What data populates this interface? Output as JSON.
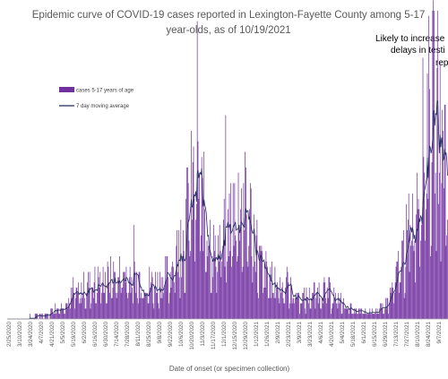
{
  "chart_data": {
    "type": "bar",
    "title_line1": "Epidemic curve of COVID-19 cases reported in Lexington-Fayette County among 5-17",
    "title_line2": "year-olds, as of 10/19/2021",
    "annotation_lines": [
      "Likely to increase",
      "delays in testi",
      "rep"
    ],
    "xlabel": "Date of onset (or specimen collection)",
    "ylabel": "",
    "colors": {
      "bars": "#7030a0",
      "line": "#1f2a5c",
      "axis": "#a6a6a6",
      "text": "#595959"
    },
    "grid": false,
    "legend": {
      "position": "top-left",
      "entries": [
        {
          "label": "cases 5-17 years of age",
          "kind": "bar"
        },
        {
          "label": "7 day moving average",
          "kind": "line"
        }
      ]
    },
    "x_ticks": [
      "2/25/2020",
      "3/10/2020",
      "3/24/2020",
      "4/7/2020",
      "4/21/2020",
      "5/5/2020",
      "5/19/2020",
      "6/2/2020",
      "6/16/2020",
      "6/30/2020",
      "7/14/2020",
      "7/28/2020",
      "8/11/2020",
      "8/25/2020",
      "9/8/2020",
      "9/22/2020",
      "10/6/2020",
      "10/20/2020",
      "11/3/2020",
      "11/17/2020",
      "12/1/2020",
      "12/15/2020",
      "12/29/2020",
      "1/12/2021",
      "1/26/2021",
      "2/9/2021",
      "2/23/2021",
      "3/9/2021",
      "3/23/2021",
      "4/6/2021",
      "4/20/2021",
      "5/4/2021",
      "5/18/2021",
      "6/1/2021",
      "6/15/2021",
      "6/29/2021",
      "7/13/2021",
      "7/27/2021",
      "8/10/2021",
      "8/24/2021",
      "9/7/2021"
    ],
    "ylim": [
      0,
      50
    ],
    "series_profile": {
      "description_points": [
        [
          0,
          0.2
        ],
        [
          28,
          0.3
        ],
        [
          50,
          0.8
        ],
        [
          80,
          3.0
        ],
        [
          100,
          5.5
        ],
        [
          120,
          6.5
        ],
        [
          140,
          7.5
        ],
        [
          160,
          8.0
        ],
        [
          175,
          7.0
        ],
        [
          195,
          6.0
        ],
        [
          215,
          8.0
        ],
        [
          235,
          14.0
        ],
        [
          245,
          22.0
        ],
        [
          255,
          24.5
        ],
        [
          262,
          20.0
        ],
        [
          275,
          12.0
        ],
        [
          290,
          14.0
        ],
        [
          305,
          20.0
        ],
        [
          315,
          20.5
        ],
        [
          325,
          18.0
        ],
        [
          340,
          9.0
        ],
        [
          355,
          6.5
        ],
        [
          375,
          5.5
        ],
        [
          390,
          4.0
        ],
        [
          405,
          4.0
        ],
        [
          420,
          5.5
        ],
        [
          435,
          4.5
        ],
        [
          450,
          2.5
        ],
        [
          470,
          1.2
        ],
        [
          490,
          1.5
        ],
        [
          505,
          2.0
        ],
        [
          520,
          7.0
        ],
        [
          535,
          14.0
        ],
        [
          545,
          20.0
        ],
        [
          555,
          30.0
        ],
        [
          565,
          36.5
        ],
        [
          573,
          38.0
        ],
        [
          580,
          34.0
        ],
        [
          588,
          29.0
        ]
      ]
    },
    "days": 590
  }
}
